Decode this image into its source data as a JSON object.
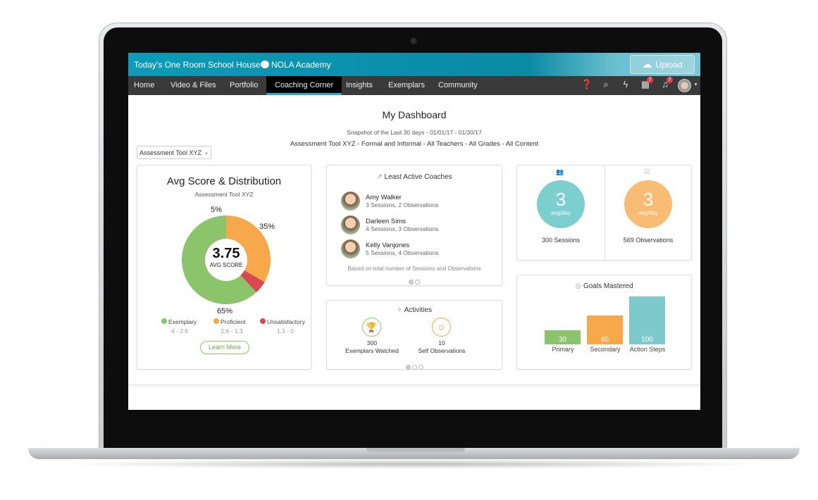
{
  "header": {
    "school": "Today's One Room School House",
    "academy": "NOLA Academy",
    "upload_label": "Upload"
  },
  "nav": {
    "items": [
      "Home",
      "Video & Files",
      "Portfolio",
      "Coaching Corner",
      "Insights",
      "Exemplars",
      "Community"
    ],
    "active": "Coaching Corner",
    "icons": [
      "help-icon",
      "search-icon",
      "lightning-icon",
      "calendar-icon",
      "bell-icon",
      "avatar"
    ],
    "calendar_badge": "7",
    "bell_badge": "7"
  },
  "dashboard": {
    "title": "My Dashboard",
    "snapshot": "Snapshot of the Last 30 days - 01/01/17 - 01/30/17",
    "filters": "Assessment Tool XYZ - Formal and Informal - All Teachers - All Grades - All Content",
    "tool_select": "Assessment Tool XYZ"
  },
  "avg_card": {
    "title": "Avg Score & Distribution",
    "subtitle": "Assessment Tool XYZ",
    "avg": "3.75",
    "avg_label": "AVG SCORE",
    "learn_more": "Learn More",
    "legend": [
      {
        "name": "Exemplary",
        "range": "4 - 2.6",
        "color": "#8cc46c"
      },
      {
        "name": "Proficient",
        "range": "2.6 - 1.3",
        "color": "#f6a84a"
      },
      {
        "name": "Unsatisfactory",
        "range": "1.3 - 0",
        "color": "#d84a4f"
      }
    ]
  },
  "chart_data": {
    "type": "pie",
    "values": [
      {
        "name": "Proficient",
        "value": 35,
        "label": "35%"
      },
      {
        "name": "Unsatisfactory",
        "value": 5,
        "label": "5%"
      },
      {
        "name": "Exemplary",
        "value": 65,
        "label": "65%"
      }
    ]
  },
  "coaches": {
    "title": "Least Active Coaches",
    "items": [
      {
        "name": "Amy Walker",
        "detail": "3 Sessions, 2 Observations"
      },
      {
        "name": "Darleen Sims",
        "detail": "4 Sessions, 3 Observations"
      },
      {
        "name": "Kelly Vanjones",
        "detail": "5 Sessions, 4 Observations"
      }
    ],
    "note": "Based on total number of Sessions and Observations"
  },
  "activities": {
    "title": "Activities",
    "items": [
      {
        "count": "300",
        "label": "Exemplars Watched",
        "color": "#8cc46c"
      },
      {
        "count": "10",
        "label": "Self Observations",
        "color": "#f6a84a"
      }
    ]
  },
  "stats": [
    {
      "value": "3",
      "unit": "avg/day",
      "label": "300 Sessions",
      "color": "#7dcfcf"
    },
    {
      "value": "3",
      "unit": "avg/day",
      "label": "569 Observations",
      "color": "#f8bd72"
    }
  ],
  "goals": {
    "title": "Goals Mastered",
    "bars": [
      {
        "label": "Primary",
        "value": 30,
        "text": "30",
        "color": "#8cc46c"
      },
      {
        "label": "Secondary",
        "value": 60,
        "text": "60",
        "color": "#f6a84a"
      },
      {
        "label": "Action Steps",
        "value": 100,
        "text": "100",
        "color": "#7dcacc"
      }
    ]
  }
}
